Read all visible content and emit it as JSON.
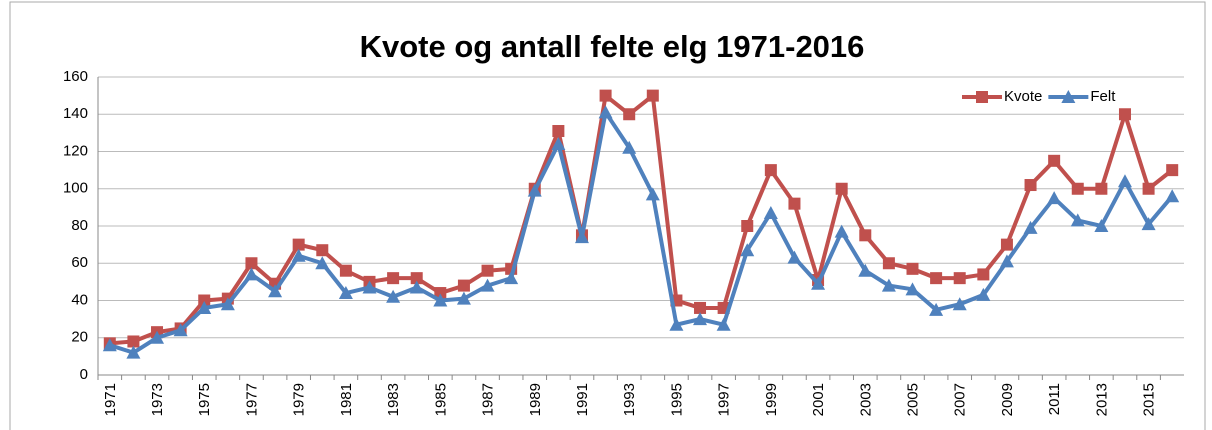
{
  "chart_data": {
    "type": "line",
    "title": "Kvote og antall felte elg 1971-2016",
    "categories": [
      "1971",
      null,
      "1973",
      null,
      "1975",
      null,
      "1977",
      null,
      "1979",
      null,
      "1981",
      null,
      "1983",
      null,
      "1985",
      null,
      "1987",
      null,
      "1989",
      null,
      "1991",
      null,
      "1993",
      null,
      "1995",
      null,
      "1997",
      null,
      "1999",
      null,
      "2001",
      null,
      "2003",
      null,
      "2005",
      null,
      "2007",
      null,
      "2009",
      null,
      "2011",
      null,
      "2013",
      null,
      "2015",
      null
    ],
    "series": [
      {
        "name": "Kvote",
        "color": "#c0504d",
        "marker": "square",
        "values": [
          17,
          18,
          23,
          25,
          40,
          41,
          60,
          49,
          70,
          67,
          56,
          50,
          52,
          52,
          44,
          48,
          56,
          57,
          100,
          131,
          75,
          150,
          140,
          150,
          40,
          36,
          36,
          80,
          110,
          92,
          51,
          100,
          75,
          60,
          57,
          52,
          52,
          54,
          70,
          102,
          115,
          100,
          100,
          140,
          100,
          110
        ]
      },
      {
        "name": "Felt",
        "color": "#4f81bd",
        "marker": "triangle",
        "values": [
          16,
          12,
          20,
          24,
          36,
          38,
          54,
          45,
          64,
          60,
          44,
          47,
          42,
          47,
          40,
          41,
          48,
          52,
          99,
          124,
          74,
          141,
          122,
          97,
          27,
          30,
          27,
          67,
          87,
          63,
          49,
          77,
          56,
          48,
          46,
          35,
          38,
          43,
          61,
          79,
          95,
          83,
          80,
          104,
          81,
          96
        ]
      }
    ],
    "ylim": [
      0,
      160
    ],
    "yticks": [
      0,
      20,
      40,
      60,
      80,
      100,
      120,
      140,
      160
    ],
    "grid": true,
    "legend": "top-right"
  }
}
